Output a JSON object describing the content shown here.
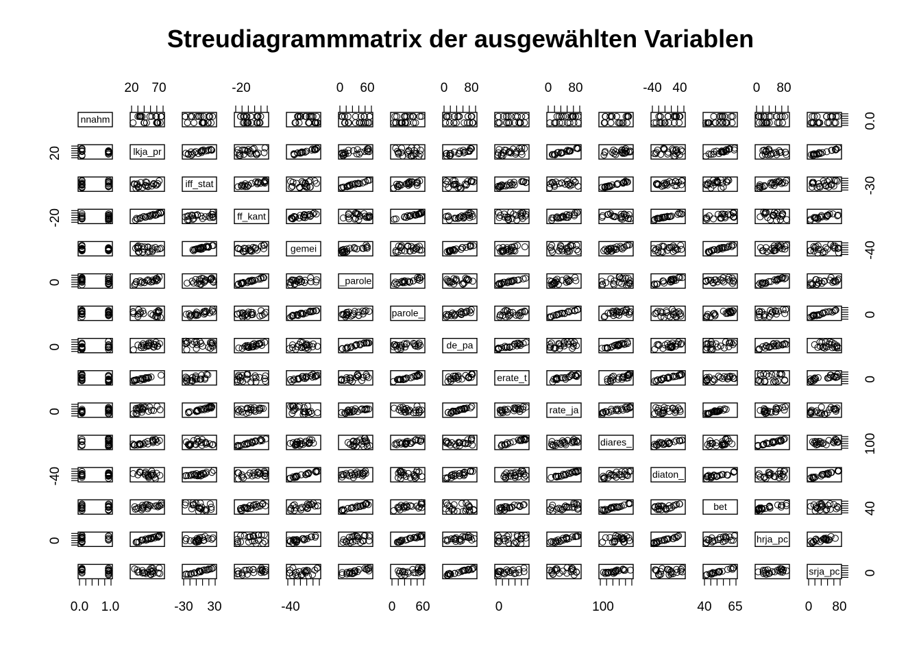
{
  "chart_data": {
    "type": "scatter",
    "matrix": "pairs",
    "title": "Streudiagrammmatrix der ausgewählten Variablen",
    "variables": [
      "nnahm",
      "lkja_pr",
      "iff_stat",
      "ff_kant",
      "gemei",
      "_parole",
      "parole_",
      "de_pa",
      "erate_t",
      "rate_ja",
      "diares_",
      "diaton_",
      "bet",
      "hrja_pc",
      "srja_pc"
    ],
    "top_axis_labels": [
      {
        "var": 1,
        "labels": [
          "20",
          "70"
        ]
      },
      {
        "var": 3,
        "labels": [
          "-20"
        ]
      },
      {
        "var": 5,
        "labels": [
          "0",
          "60"
        ]
      },
      {
        "var": 7,
        "labels": [
          "0",
          "80"
        ]
      },
      {
        "var": 9,
        "labels": [
          "0",
          "80"
        ]
      },
      {
        "var": 11,
        "labels": [
          "-40",
          "40"
        ]
      },
      {
        "var": 13,
        "labels": [
          "0",
          "80"
        ]
      }
    ],
    "bottom_axis_labels": [
      {
        "var": 0,
        "labels": [
          "0.0",
          "1.0"
        ]
      },
      {
        "var": 2,
        "labels": [
          "-30",
          "30"
        ]
      },
      {
        "var": 4,
        "labels": [
          "-40"
        ]
      },
      {
        "var": 6,
        "labels": [
          "0",
          "60"
        ]
      },
      {
        "var": 8,
        "labels": [
          "0"
        ]
      },
      {
        "var": 10,
        "labels": [
          "100"
        ]
      },
      {
        "var": 12,
        "labels": [
          "40",
          "65"
        ]
      },
      {
        "var": 14,
        "labels": [
          "0",
          "80"
        ]
      }
    ],
    "left_axis_labels": [
      {
        "var": 1,
        "labels": [
          "20"
        ]
      },
      {
        "var": 3,
        "labels": [
          "-20"
        ]
      },
      {
        "var": 5,
        "labels": [
          "0"
        ]
      },
      {
        "var": 7,
        "labels": [
          "0"
        ]
      },
      {
        "var": 9,
        "labels": [
          "0"
        ]
      },
      {
        "var": 11,
        "labels": [
          "-40"
        ]
      },
      {
        "var": 13,
        "labels": [
          "0"
        ]
      }
    ],
    "right_axis_labels": [
      {
        "var": 0,
        "labels": [
          "0.0"
        ]
      },
      {
        "var": 2,
        "labels": [
          "-30"
        ]
      },
      {
        "var": 4,
        "labels": [
          "-40"
        ]
      },
      {
        "var": 6,
        "labels": [
          "0"
        ]
      },
      {
        "var": 8,
        "labels": [
          "0"
        ]
      },
      {
        "var": 10,
        "labels": [
          "100"
        ]
      },
      {
        "var": 12,
        "labels": [
          "40"
        ]
      },
      {
        "var": 14,
        "labels": [
          "0"
        ]
      }
    ],
    "grid": false,
    "marker": "open-circle",
    "color": "#000000"
  }
}
